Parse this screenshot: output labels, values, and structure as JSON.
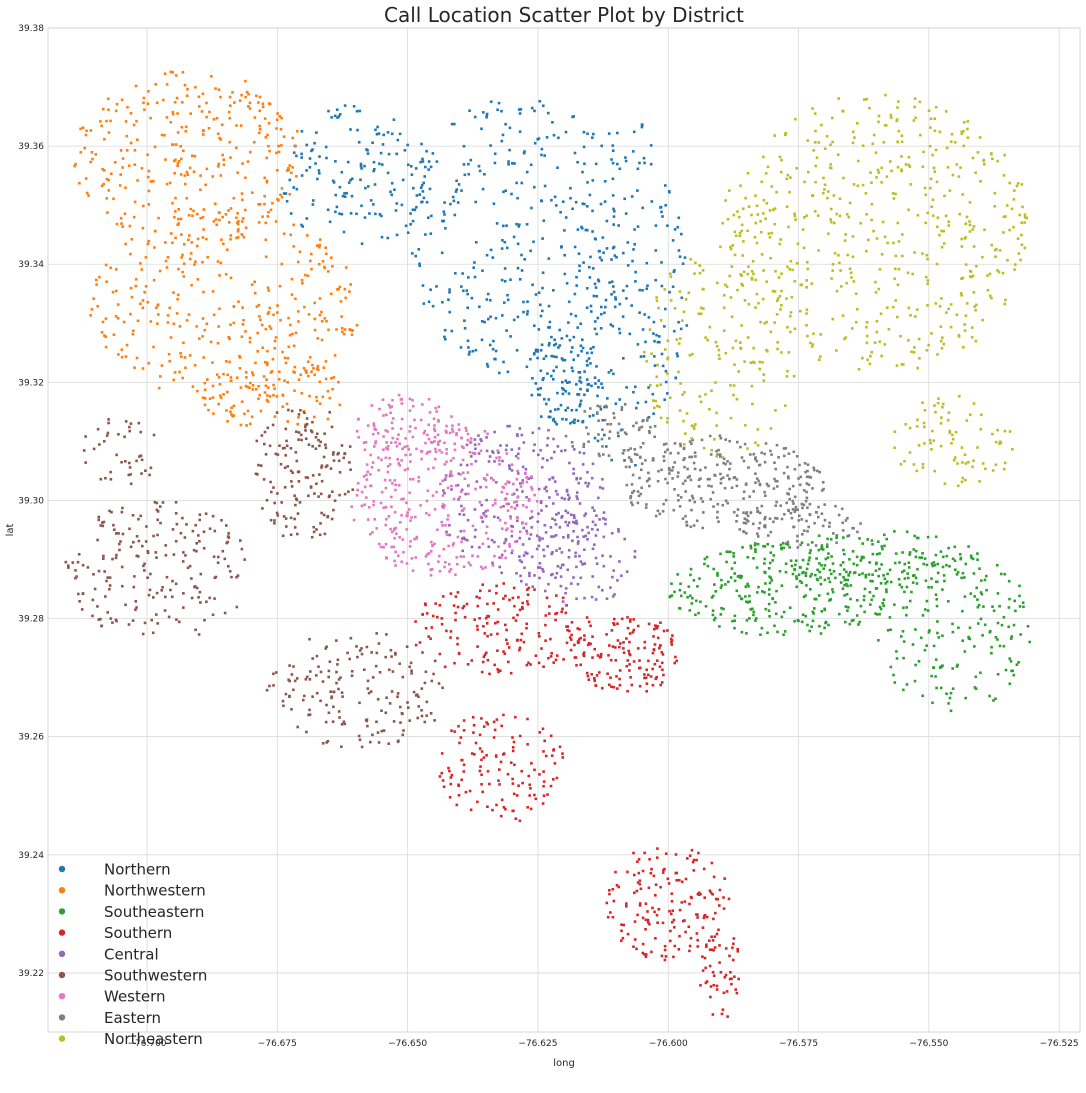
{
  "chart_data": {
    "type": "scatter",
    "title": "Call Location Scatter Plot by District",
    "xlabel": "long",
    "ylabel": "lat",
    "xlim": [
      -76.719,
      -76.521
    ],
    "ylim": [
      39.21,
      39.38
    ],
    "x_ticks": [
      -76.7,
      -76.675,
      -76.65,
      -76.625,
      -76.6,
      -76.575,
      -76.55,
      -76.525
    ],
    "x_tick_labels": [
      "−76.700",
      "−76.675",
      "−76.650",
      "−76.625",
      "−76.600",
      "−76.575",
      "−76.550",
      "−76.525"
    ],
    "y_ticks": [
      39.22,
      39.24,
      39.26,
      39.28,
      39.3,
      39.32,
      39.34,
      39.36,
      39.38
    ],
    "y_tick_labels": [
      "39.22",
      "39.24",
      "39.26",
      "39.28",
      "39.30",
      "39.32",
      "39.34",
      "39.36",
      "39.38"
    ],
    "grid": true,
    "legend_position": "bottom-left",
    "series": [
      {
        "name": "Northern",
        "color": "#1f77b4",
        "regions": [
          {
            "cx": -76.628,
            "cy": 39.345,
            "rx": 0.022,
            "ry": 0.024,
            "n": 320
          },
          {
            "cx": -76.608,
            "cy": 39.335,
            "rx": 0.012,
            "ry": 0.03,
            "n": 200
          },
          {
            "cx": -76.66,
            "cy": 39.355,
            "rx": 0.015,
            "ry": 0.012,
            "n": 150
          },
          {
            "cx": -76.62,
            "cy": 39.32,
            "rx": 0.008,
            "ry": 0.008,
            "n": 100
          }
        ]
      },
      {
        "name": "Northwestern",
        "color": "#ff7f0e",
        "regions": [
          {
            "cx": -76.692,
            "cy": 39.358,
            "rx": 0.022,
            "ry": 0.015,
            "n": 300
          },
          {
            "cx": -76.685,
            "cy": 39.333,
            "rx": 0.026,
            "ry": 0.016,
            "n": 320
          },
          {
            "cx": -76.675,
            "cy": 39.318,
            "rx": 0.015,
            "ry": 0.006,
            "n": 100
          }
        ]
      },
      {
        "name": "Southeastern",
        "color": "#2ca02c",
        "regions": [
          {
            "cx": -76.578,
            "cy": 39.285,
            "rx": 0.022,
            "ry": 0.008,
            "n": 300
          },
          {
            "cx": -76.545,
            "cy": 39.278,
            "rx": 0.015,
            "ry": 0.014,
            "n": 180
          },
          {
            "cx": -76.56,
            "cy": 39.29,
            "rx": 0.02,
            "ry": 0.005,
            "n": 120
          }
        ]
      },
      {
        "name": "Southern",
        "color": "#d62728",
        "regions": [
          {
            "cx": -76.632,
            "cy": 39.278,
            "rx": 0.018,
            "ry": 0.008,
            "n": 170
          },
          {
            "cx": -76.608,
            "cy": 39.274,
            "rx": 0.01,
            "ry": 0.007,
            "n": 140
          },
          {
            "cx": -76.632,
            "cy": 39.255,
            "rx": 0.012,
            "ry": 0.01,
            "n": 130
          },
          {
            "cx": -76.6,
            "cy": 39.232,
            "rx": 0.012,
            "ry": 0.01,
            "n": 160
          },
          {
            "cx": -76.59,
            "cy": 39.22,
            "rx": 0.004,
            "ry": 0.008,
            "n": 50
          }
        ]
      },
      {
        "name": "Central",
        "color": "#9467bd",
        "regions": [
          {
            "cx": -76.628,
            "cy": 39.3,
            "rx": 0.016,
            "ry": 0.013,
            "n": 260
          },
          {
            "cx": -76.618,
            "cy": 39.29,
            "rx": 0.012,
            "ry": 0.008,
            "n": 100
          }
        ]
      },
      {
        "name": "Southwestern",
        "color": "#8c564b",
        "regions": [
          {
            "cx": -76.698,
            "cy": 39.288,
            "rx": 0.018,
            "ry": 0.012,
            "n": 200
          },
          {
            "cx": -76.67,
            "cy": 39.305,
            "rx": 0.01,
            "ry": 0.012,
            "n": 150
          },
          {
            "cx": -76.66,
            "cy": 39.268,
            "rx": 0.018,
            "ry": 0.01,
            "n": 170
          },
          {
            "cx": -76.705,
            "cy": 39.308,
            "rx": 0.008,
            "ry": 0.006,
            "n": 40
          }
        ]
      },
      {
        "name": "Western",
        "color": "#e377c2",
        "regions": [
          {
            "cx": -76.643,
            "cy": 39.3,
            "rx": 0.018,
            "ry": 0.013,
            "n": 340
          },
          {
            "cx": -76.65,
            "cy": 39.312,
            "rx": 0.01,
            "ry": 0.006,
            "n": 90
          }
        ]
      },
      {
        "name": "Eastern",
        "color": "#7f7f7f",
        "regions": [
          {
            "cx": -76.59,
            "cy": 39.303,
            "rx": 0.02,
            "ry": 0.008,
            "n": 280
          },
          {
            "cx": -76.575,
            "cy": 39.296,
            "rx": 0.012,
            "ry": 0.004,
            "n": 80
          },
          {
            "cx": -76.61,
            "cy": 39.312,
            "rx": 0.008,
            "ry": 0.005,
            "n": 60
          }
        ]
      },
      {
        "name": "Northeastern",
        "color": "#bcbd22",
        "regions": [
          {
            "cx": -76.56,
            "cy": 39.345,
            "rx": 0.03,
            "ry": 0.024,
            "n": 520
          },
          {
            "cx": -76.59,
            "cy": 39.325,
            "rx": 0.015,
            "ry": 0.018,
            "n": 160
          },
          {
            "cx": -76.545,
            "cy": 39.31,
            "rx": 0.012,
            "ry": 0.008,
            "n": 80
          }
        ]
      }
    ]
  }
}
